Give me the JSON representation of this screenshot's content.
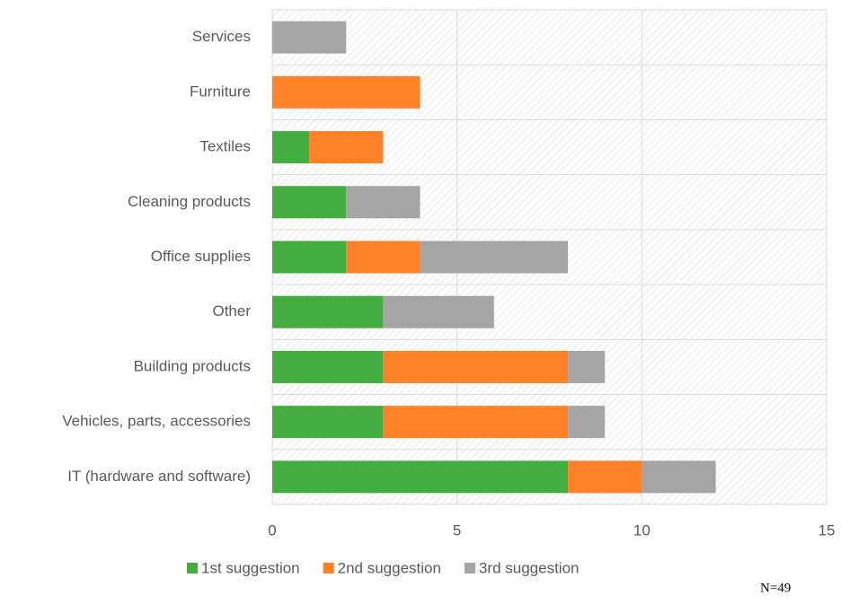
{
  "chart_data": {
    "type": "stacked-barh",
    "categories": [
      "Services",
      "Furniture",
      "Textiles",
      "Cleaning products",
      "Office supplies",
      "Other",
      "Building products",
      "Vehicles, parts, accessories",
      "IT (hardware and software)"
    ],
    "series": [
      {
        "name": "1st suggestion",
        "color": "#43ae3f",
        "values": [
          0,
          0,
          1,
          2,
          2,
          3,
          3,
          3,
          8
        ]
      },
      {
        "name": "2nd suggestion",
        "color": "#ff8128",
        "values": [
          0,
          4,
          2,
          0,
          2,
          0,
          5,
          5,
          2
        ]
      },
      {
        "name": "3rd suggestion",
        "color": "#a5a5a5",
        "values": [
          2,
          0,
          0,
          2,
          4,
          3,
          1,
          1,
          2
        ]
      }
    ],
    "xlim": [
      0,
      15
    ],
    "xticks": [
      0,
      5,
      10,
      15
    ],
    "grid": true,
    "legend": "bottom",
    "annotation": "N=49"
  }
}
